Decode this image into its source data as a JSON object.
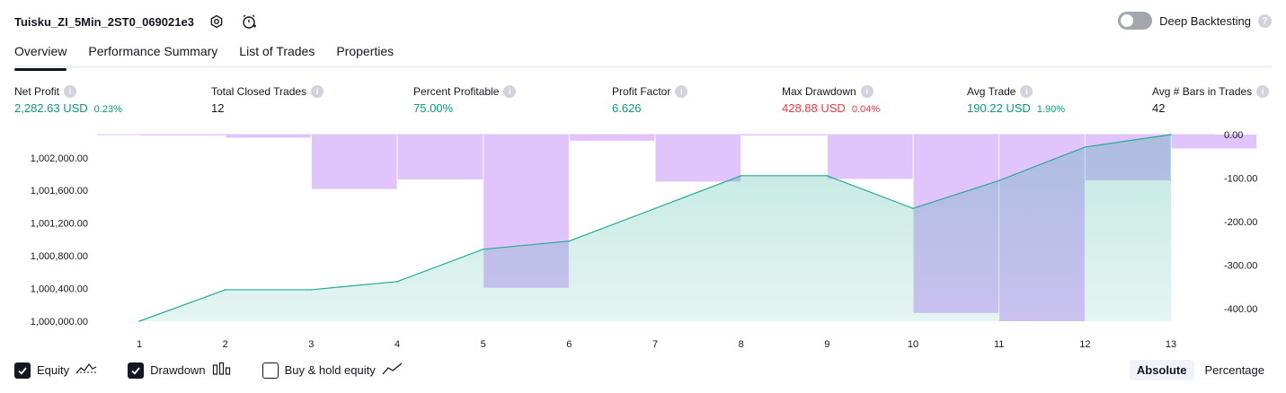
{
  "header": {
    "strategy_name": "Tuisku_ZI_5Min_2ST0_069021e3",
    "settings_icon": "settings-gear-icon",
    "add_alert_icon": "alert-clock-icon",
    "deep_backtesting_label": "Deep Backtesting",
    "deep_backtesting_enabled": false
  },
  "tabs": [
    {
      "label": "Overview",
      "active": true
    },
    {
      "label": "Performance Summary",
      "active": false
    },
    {
      "label": "List of Trades",
      "active": false
    },
    {
      "label": "Properties",
      "active": false
    }
  ],
  "metrics": [
    {
      "label": "Net Profit",
      "value": "2,282.63 USD",
      "pct": "0.23%",
      "tone": "pos"
    },
    {
      "label": "Total Closed Trades",
      "value": "12",
      "pct": "",
      "tone": "neu"
    },
    {
      "label": "Percent Profitable",
      "value": "75.00%",
      "pct": "",
      "tone": "pos"
    },
    {
      "label": "Profit Factor",
      "value": "6.626",
      "pct": "",
      "tone": "pos"
    },
    {
      "label": "Max Drawdown",
      "value": "428.88 USD",
      "pct": "0.04%",
      "tone": "neg"
    },
    {
      "label": "Avg Trade",
      "value": "190.22 USD",
      "pct": "1.90%",
      "tone": "pos"
    },
    {
      "label": "Avg # Bars in Trades",
      "value": "42",
      "pct": "",
      "tone": "neu"
    }
  ],
  "colors": {
    "positive": "#089981",
    "negative": "#f23645",
    "equity_line": "#22ab94",
    "drawdown_fill": "#e1c4fc",
    "text": "#131722"
  },
  "chart_data": {
    "type": "line",
    "categories": [
      1,
      2,
      3,
      4,
      5,
      6,
      7,
      8,
      9,
      10,
      11,
      12,
      13
    ],
    "series": [
      {
        "name": "Equity",
        "axis": "left",
        "values": [
          1000000,
          1000385,
          1000385,
          1000485,
          1000880,
          1000980,
          1001380,
          1001780,
          1001780,
          1001380,
          1001720,
          1002130,
          1002282.63
        ]
      },
      {
        "name": "Drawdown",
        "axis": "right",
        "type": "bar",
        "values": [
          -1,
          -7,
          -125,
          -103,
          -352,
          -14,
          -108,
          -1,
          -102,
          -410,
          -428.88,
          -105,
          -32
        ]
      }
    ],
    "left_axis": {
      "ylim": [
        1000000,
        1002282.63
      ],
      "ticks": [
        "1,000,000.00",
        "1,000,400.00",
        "1,000,800.00",
        "1,001,200.00",
        "1,001,600.00",
        "1,002,000.00"
      ]
    },
    "right_axis": {
      "ylim": [
        -428.88,
        0
      ],
      "ticks": [
        "0.00",
        "-100.00",
        "-200.00",
        "-300.00",
        "-400.00"
      ]
    },
    "x_tick_labels": [
      "1",
      "2",
      "3",
      "4",
      "5",
      "6",
      "7",
      "8",
      "9",
      "10",
      "11",
      "12",
      "13"
    ]
  },
  "legend": {
    "items": [
      {
        "label": "Equity",
        "checked": true,
        "icon": "equity-line-icon"
      },
      {
        "label": "Drawdown",
        "checked": true,
        "icon": "drawdown-bars-icon"
      },
      {
        "label": "Buy & hold equity",
        "checked": false,
        "icon": "buy-hold-line-icon"
      }
    ],
    "modes": [
      {
        "label": "Absolute",
        "active": true
      },
      {
        "label": "Percentage",
        "active": false
      }
    ]
  }
}
